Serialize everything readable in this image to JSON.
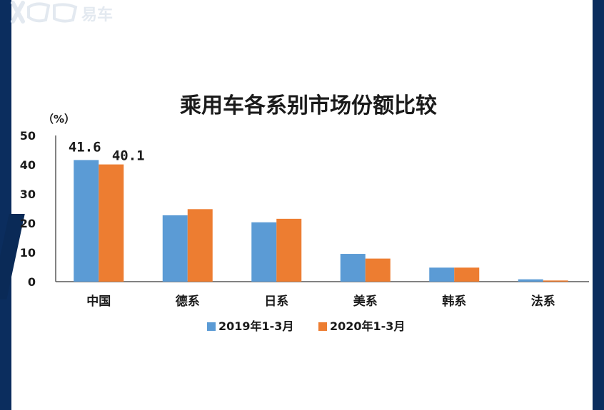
{
  "watermark_text": "易车",
  "chart_data": {
    "type": "bar",
    "title": "乘用车各系别市场份额比较",
    "unit_label": "（%）",
    "categories": [
      "中国",
      "德系",
      "日系",
      "美系",
      "韩系",
      "法系"
    ],
    "series": [
      {
        "name": "2019年1-3月",
        "values": [
          41.6,
          22.7,
          20.3,
          9.5,
          4.8,
          0.8
        ],
        "color": "#5b9bd5"
      },
      {
        "name": "2020年1-3月",
        "values": [
          40.1,
          24.8,
          21.5,
          7.9,
          4.8,
          0.4
        ],
        "color": "#ed7d31"
      }
    ],
    "data_labels": [
      {
        "series": 0,
        "index": 0,
        "text": "41.6"
      },
      {
        "series": 1,
        "index": 0,
        "text": "40.1"
      }
    ],
    "yticks": [
      "0",
      "10",
      "20",
      "30",
      "40",
      "50"
    ],
    "ylim": [
      0,
      50
    ],
    "grid": false,
    "legend": "bottom"
  }
}
